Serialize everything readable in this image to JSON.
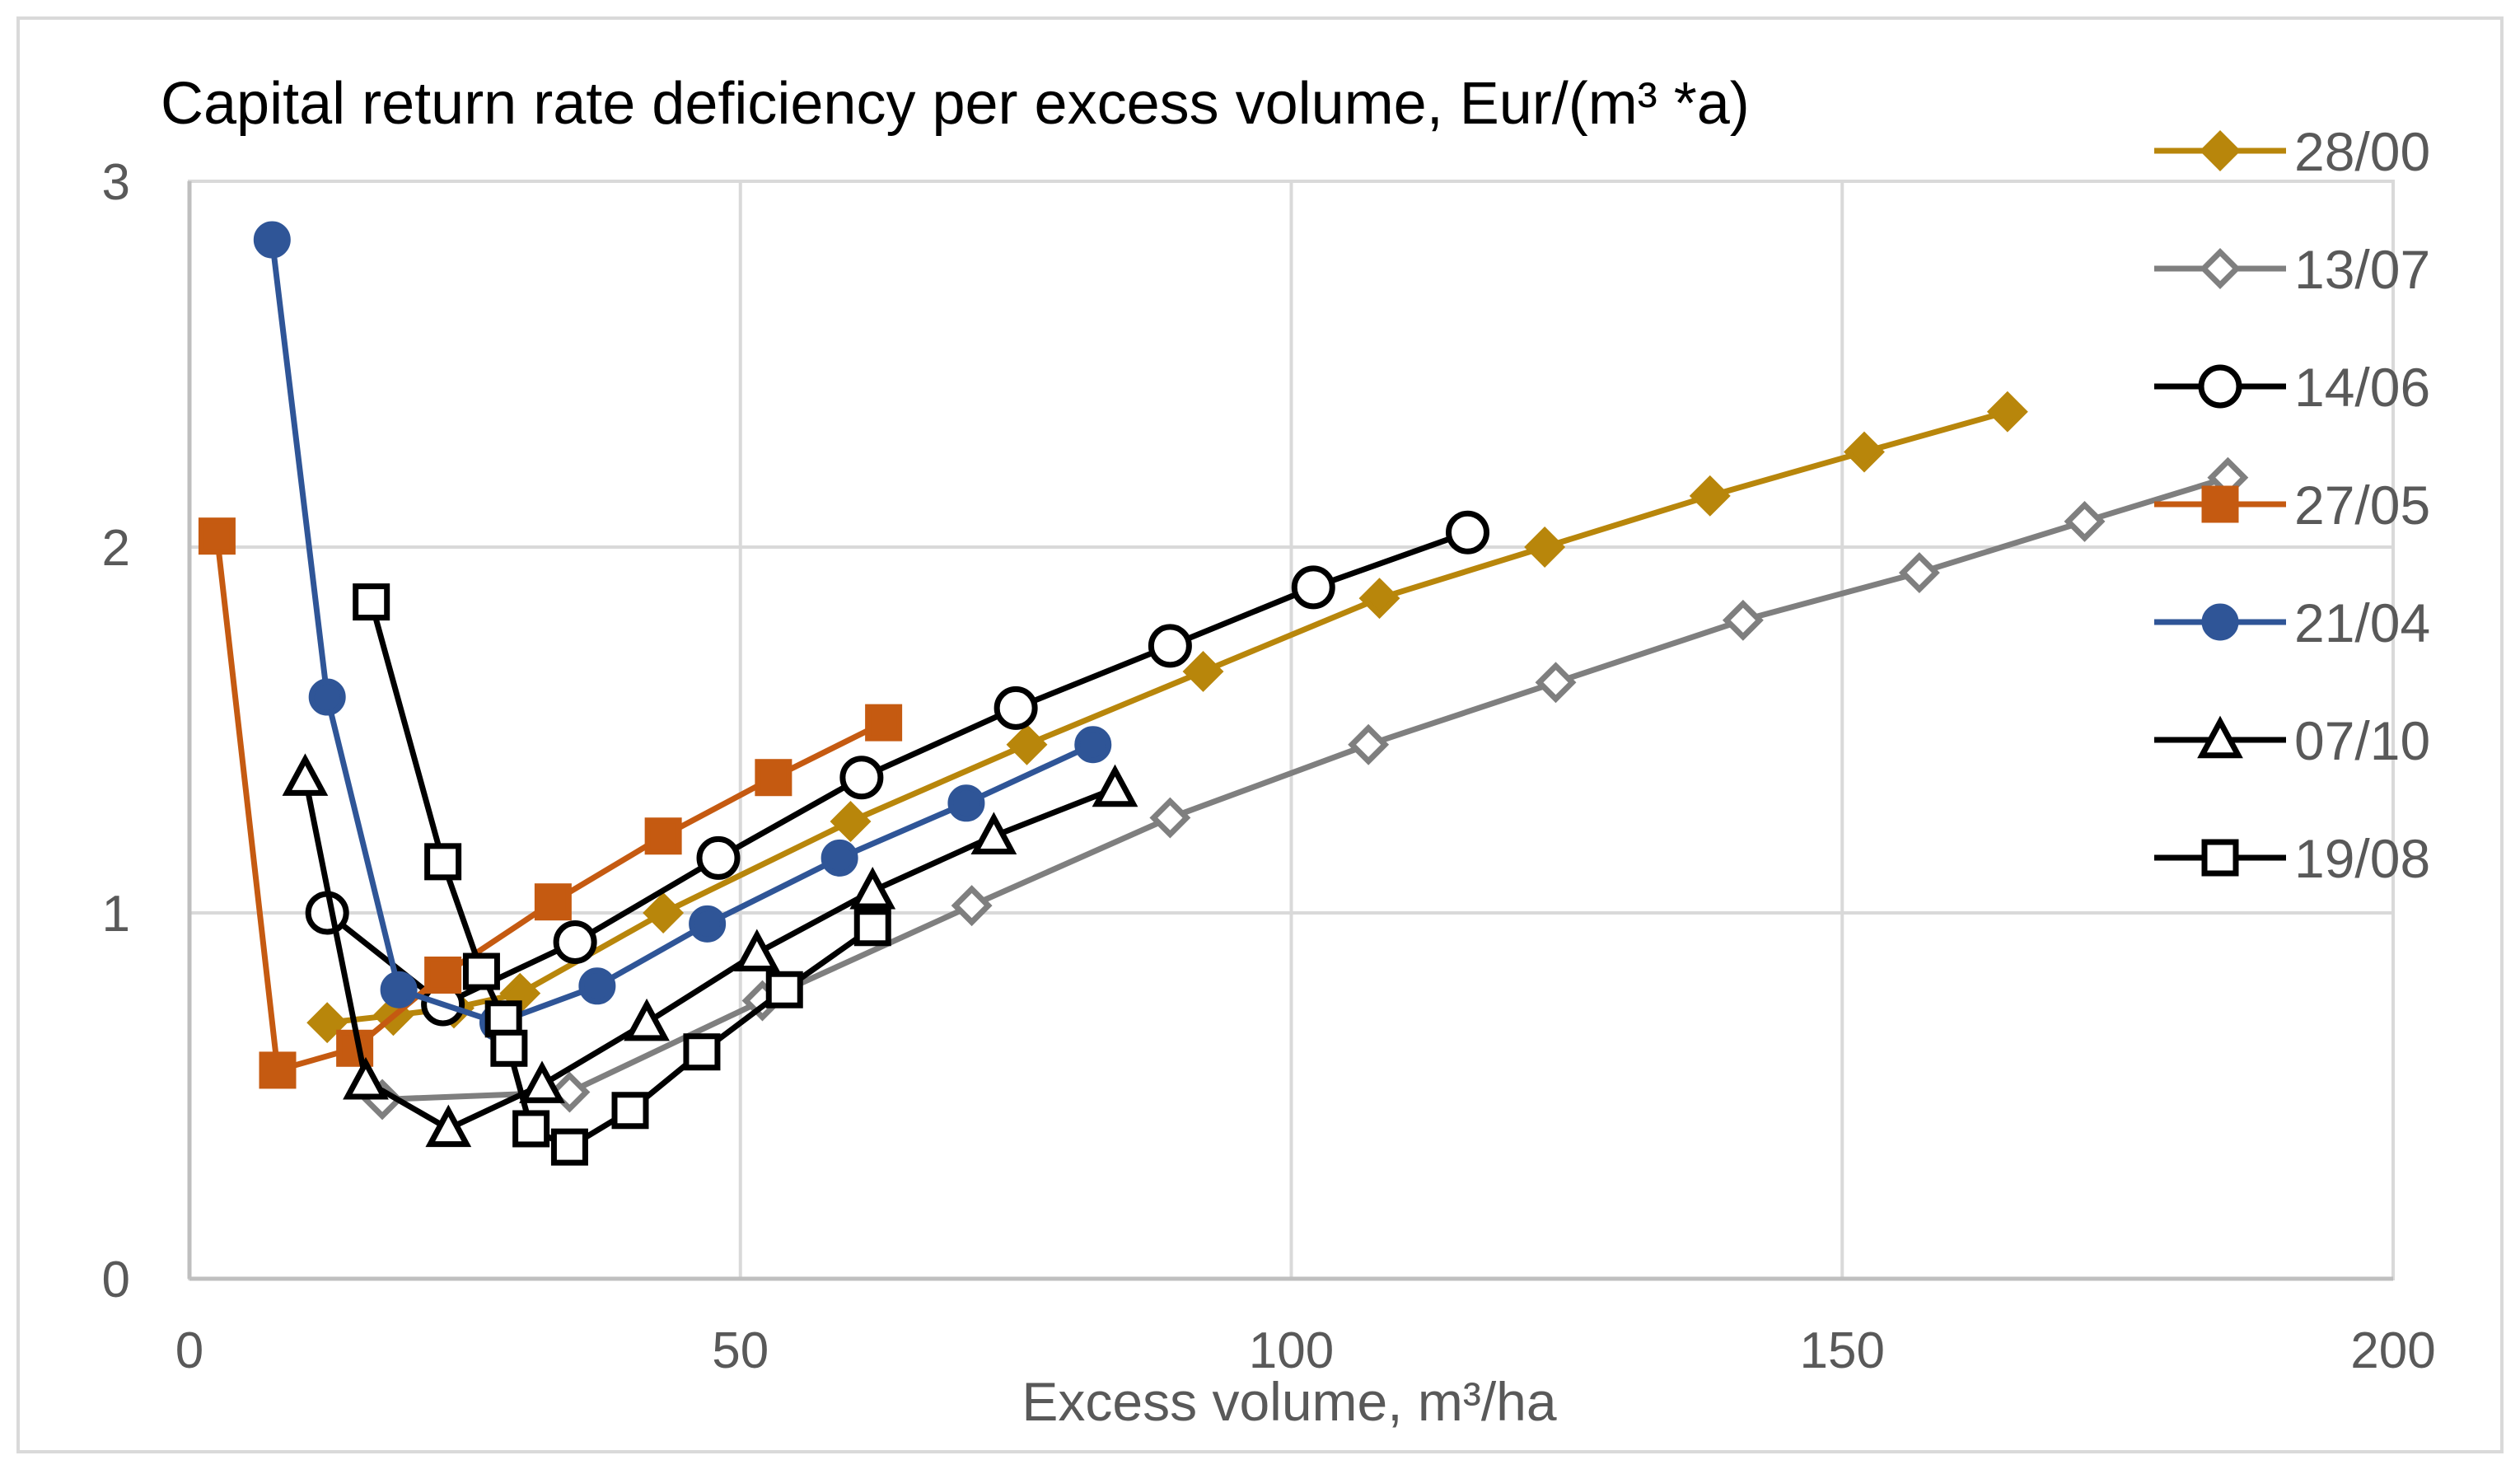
{
  "chart_data": {
    "type": "scatter",
    "title": "Capital return rate deficiency per excess volume,  Eur/(m³ *a)",
    "xlabel": "Excess volume, m³/ha",
    "ylabel": "",
    "xlim": [
      0,
      200
    ],
    "ylim": [
      0,
      3
    ],
    "x_ticks": [
      0,
      50,
      100,
      150,
      200
    ],
    "y_ticks": [
      0,
      1,
      2,
      3
    ],
    "x_tick_labels": [
      "0",
      "50",
      "100",
      "150",
      "200"
    ],
    "y_tick_labels": [
      "0",
      "1",
      "2",
      "3"
    ],
    "grid": true,
    "legend_position": "right",
    "series": [
      {
        "name": "28/00",
        "color": "#b8860b",
        "marker": "diamond-filled",
        "x": [
          12.5,
          18.5,
          24,
          30,
          43,
          60,
          76,
          92,
          108,
          123,
          138,
          152,
          165
        ],
        "y": [
          0.7,
          0.72,
          0.74,
          0.78,
          1.0,
          1.25,
          1.46,
          1.66,
          1.86,
          2.0,
          2.14,
          2.26,
          2.37
        ]
      },
      {
        "name": "13/07",
        "color": "#7f7f7f",
        "marker": "diamond-open",
        "x": [
          17.5,
          34.5,
          52,
          71,
          89,
          107,
          124,
          141,
          157,
          172,
          185
        ],
        "y": [
          0.49,
          0.51,
          0.76,
          1.02,
          1.26,
          1.46,
          1.63,
          1.8,
          1.93,
          2.07,
          2.19
        ]
      },
      {
        "name": "14/06",
        "color": "#000000",
        "marker": "circle-open",
        "x": [
          12.5,
          23,
          35,
          48,
          61,
          75,
          89,
          102,
          116
        ],
        "y": [
          1.0,
          0.75,
          0.92,
          1.15,
          1.37,
          1.56,
          1.73,
          1.89,
          2.04
        ]
      },
      {
        "name": "27/05",
        "color": "#c55a11",
        "marker": "square-filled",
        "x": [
          2.5,
          8,
          15,
          23,
          33,
          43,
          53,
          63
        ],
        "y": [
          2.03,
          0.57,
          0.63,
          0.83,
          1.03,
          1.21,
          1.37,
          1.52
        ]
      },
      {
        "name": "21/04",
        "color": "#2f5597",
        "marker": "circle-filled",
        "x": [
          7.5,
          12.5,
          19,
          28,
          37,
          47,
          59,
          70.5,
          82
        ],
        "y": [
          2.84,
          1.59,
          0.79,
          0.7,
          0.8,
          0.97,
          1.15,
          1.3,
          1.46
        ]
      },
      {
        "name": "07/10",
        "color": "#000000",
        "marker": "triangle-open",
        "x": [
          10.5,
          16,
          23.5,
          32,
          41.5,
          51.5,
          62,
          73,
          84
        ],
        "y": [
          1.37,
          0.54,
          0.41,
          0.53,
          0.7,
          0.89,
          1.06,
          1.21,
          1.34
        ]
      },
      {
        "name": "19/08",
        "color": "#000000",
        "marker": "square-open",
        "x": [
          16.5,
          23,
          26.5,
          28.5,
          29,
          31,
          34.5,
          40,
          46.5,
          54,
          62
        ],
        "y": [
          1.85,
          1.14,
          0.84,
          0.71,
          0.63,
          0.41,
          0.36,
          0.46,
          0.62,
          0.79,
          0.96
        ]
      }
    ]
  }
}
